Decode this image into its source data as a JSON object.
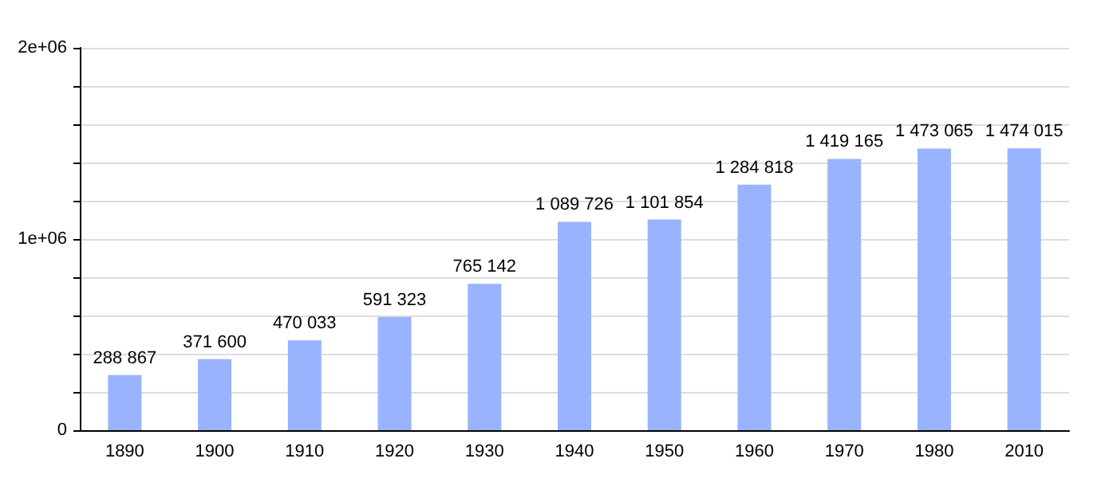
{
  "chart_data": {
    "type": "bar",
    "categories": [
      "1890",
      "1900",
      "1910",
      "1920",
      "1930",
      "1940",
      "1950",
      "1960",
      "1970",
      "1980",
      "2010"
    ],
    "values": [
      288867,
      371600,
      470033,
      591323,
      765142,
      1089726,
      1101854,
      1284818,
      1419165,
      1473065,
      1474015
    ],
    "value_labels": [
      "288 867",
      "371 600",
      "470 033",
      "591 323",
      "765 142",
      "1 089 726",
      "1 101 854",
      "1 284 818",
      "1 419 165",
      "1 473 065",
      "1 474 015"
    ],
    "color": "#99b3ff",
    "ylim": [
      0,
      2000000
    ],
    "yticks": [
      {
        "value": 0,
        "label": "0"
      },
      {
        "value": 200000,
        "label": null
      },
      {
        "value": 400000,
        "label": null
      },
      {
        "value": 600000,
        "label": null
      },
      {
        "value": 800000,
        "label": null
      },
      {
        "value": 1000000,
        "label": "1e+06"
      },
      {
        "value": 1200000,
        "label": null
      },
      {
        "value": 1400000,
        "label": null
      },
      {
        "value": 1600000,
        "label": null
      },
      {
        "value": 1800000,
        "label": null
      },
      {
        "value": 2000000,
        "label": "2e+06"
      }
    ],
    "grid": true
  }
}
